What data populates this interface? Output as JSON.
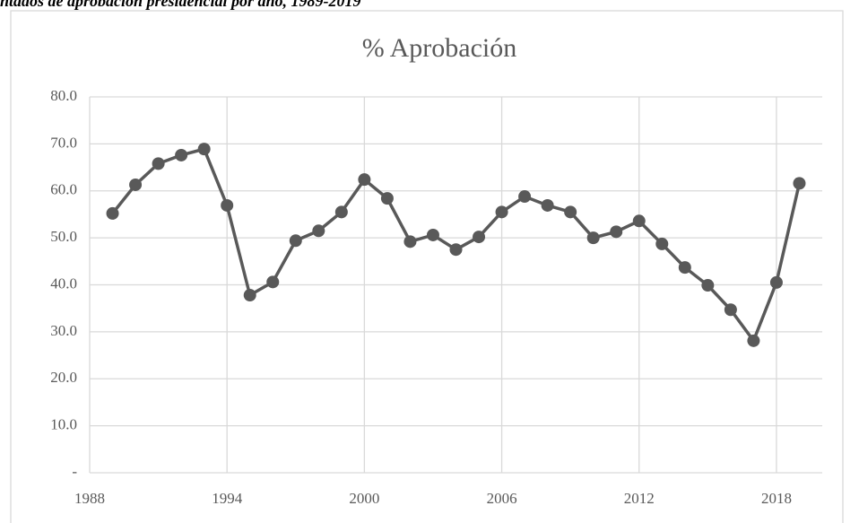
{
  "caption": "ntados de aprobación presidencial por año, 1989-2019",
  "chart_data": {
    "type": "line",
    "title": "% Aprobación",
    "x": [
      1989,
      1990,
      1991,
      1992,
      1993,
      1994,
      1995,
      1996,
      1997,
      1998,
      1999,
      2000,
      2001,
      2002,
      2003,
      2004,
      2005,
      2006,
      2007,
      2008,
      2009,
      2010,
      2011,
      2012,
      2013,
      2014,
      2015,
      2016,
      2017,
      2018,
      2019
    ],
    "series": [
      {
        "name": "% Aprobación",
        "color": "#595959",
        "values": [
          55.2,
          61.3,
          65.8,
          67.6,
          68.9,
          56.9,
          37.8,
          40.6,
          49.4,
          51.5,
          55.5,
          62.4,
          58.4,
          49.2,
          50.6,
          47.5,
          50.2,
          55.5,
          58.8,
          56.9,
          55.5,
          50.0,
          51.3,
          53.6,
          48.7,
          43.7,
          39.9,
          34.7,
          28.1,
          40.5,
          61.6
        ]
      }
    ],
    "xlim": [
      1988,
      2020
    ],
    "xticks": [
      1988,
      1994,
      2000,
      2006,
      2012,
      2018
    ],
    "ylim": [
      0,
      80
    ],
    "yticks": [
      {
        "value": 0,
        "label": "-"
      },
      {
        "value": 10,
        "label": "10.0"
      },
      {
        "value": 20,
        "label": "20.0"
      },
      {
        "value": 30,
        "label": "30.0"
      },
      {
        "value": 40,
        "label": "40.0"
      },
      {
        "value": 50,
        "label": "50.0"
      },
      {
        "value": 60,
        "label": "60.0"
      },
      {
        "value": 70,
        "label": "70.0"
      },
      {
        "value": 80,
        "label": "80.0"
      }
    ],
    "grid": true
  }
}
